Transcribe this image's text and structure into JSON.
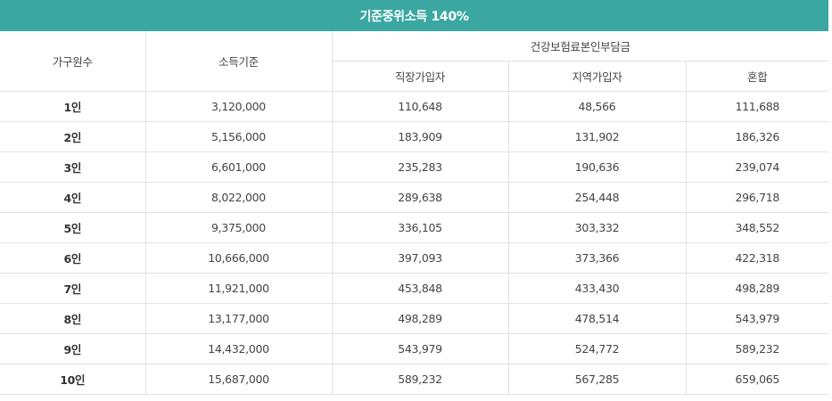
{
  "table": {
    "title": "기준중위소득 140%",
    "headers": {
      "household": "가구원수",
      "income": "소득기준",
      "premium_group": "건강보험료본인부담금",
      "employee": "직장가입자",
      "regional": "지역가입자",
      "mixed": "혼합"
    },
    "rows": [
      {
        "household": "1인",
        "income": "3,120,000",
        "employee": "110,648",
        "regional": "48,566",
        "mixed": "111,688"
      },
      {
        "household": "2인",
        "income": "5,156,000",
        "employee": "183,909",
        "regional": "131,902",
        "mixed": "186,326"
      },
      {
        "household": "3인",
        "income": "6,601,000",
        "employee": "235,283",
        "regional": "190,636",
        "mixed": "239,074"
      },
      {
        "household": "4인",
        "income": "8,022,000",
        "employee": "289,638",
        "regional": "254,448",
        "mixed": "296,718"
      },
      {
        "household": "5인",
        "income": "9,375,000",
        "employee": "336,105",
        "regional": "303,332",
        "mixed": "348,552"
      },
      {
        "household": "6인",
        "income": "10,666,000",
        "employee": "397,093",
        "regional": "373,366",
        "mixed": "422,318"
      },
      {
        "household": "7인",
        "income": "11,921,000",
        "employee": "453,848",
        "regional": "433,430",
        "mixed": "498,289"
      },
      {
        "household": "8인",
        "income": "13,177,000",
        "employee": "498,289",
        "regional": "478,514",
        "mixed": "543,979"
      },
      {
        "household": "9인",
        "income": "14,432,000",
        "employee": "543,979",
        "regional": "524,772",
        "mixed": "589,232"
      },
      {
        "household": "10인",
        "income": "15,687,000",
        "employee": "589,232",
        "regional": "567,285",
        "mixed": "659,065"
      }
    ]
  }
}
